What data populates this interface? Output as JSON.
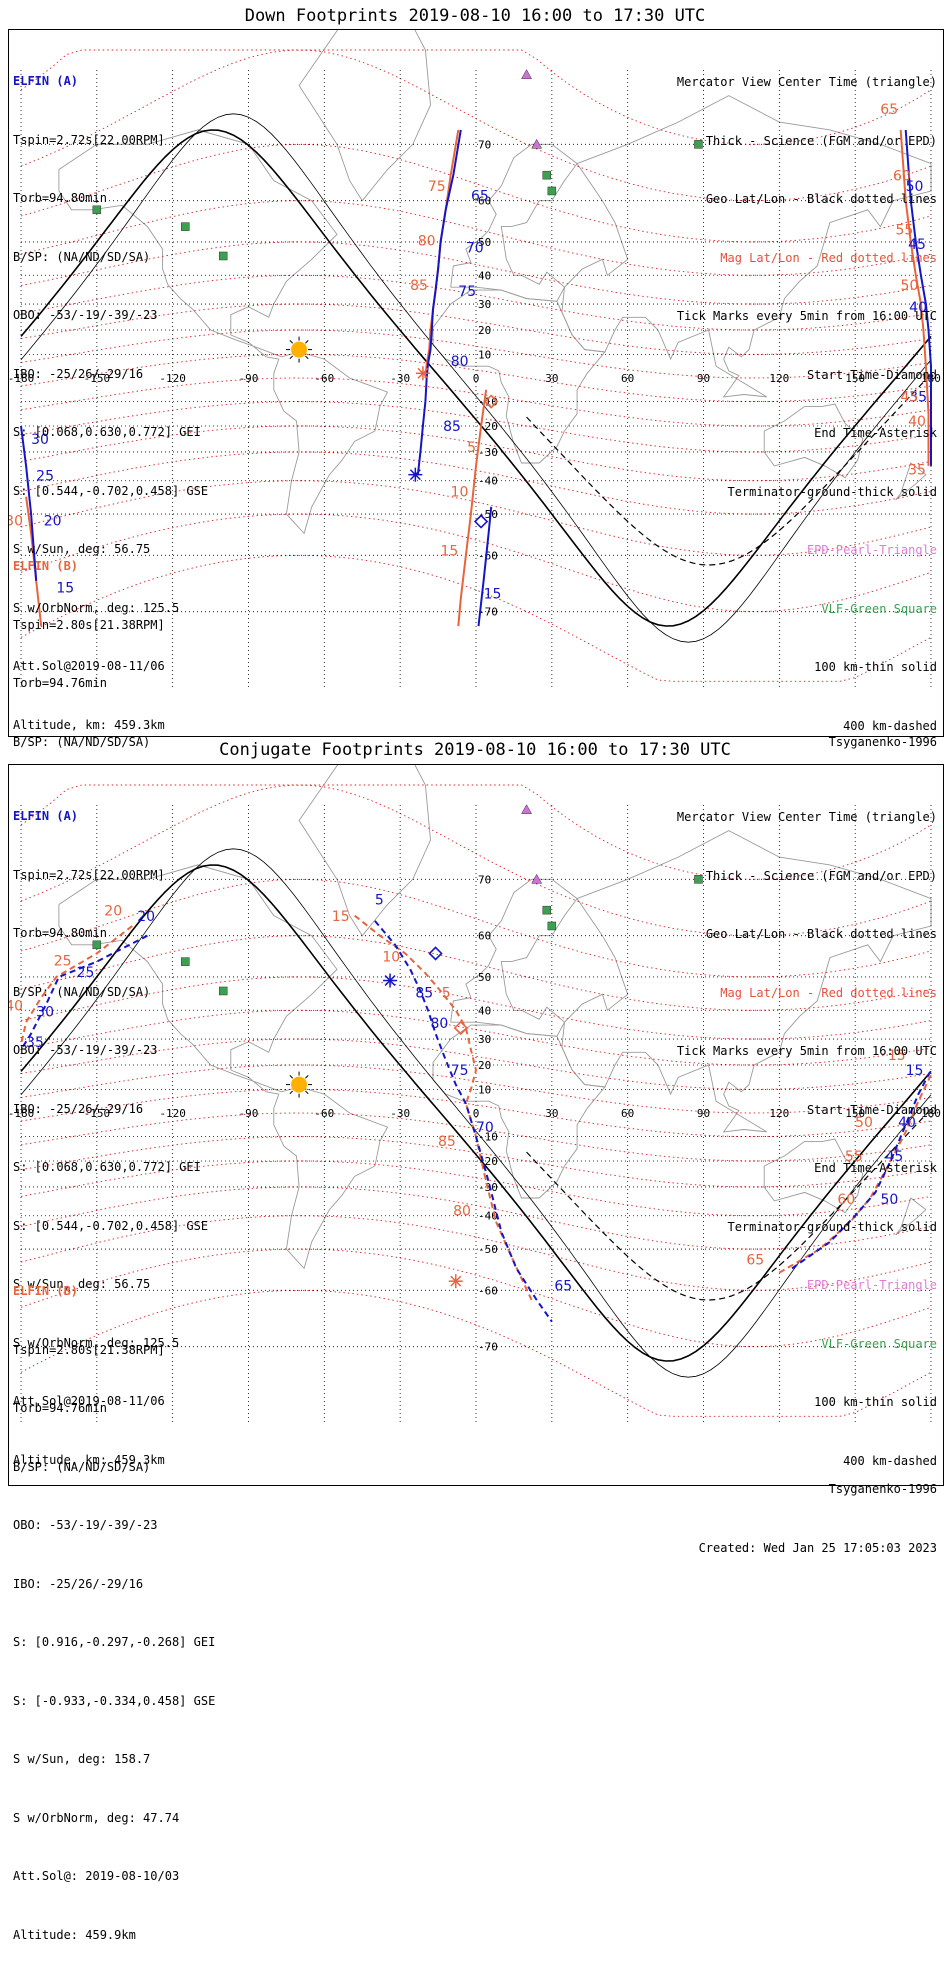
{
  "colors": {
    "elfin_a": "#1414c8",
    "elfin_b": "#e8643c",
    "mag_grid": "#dd2222",
    "geo_grid": "#000000",
    "coast": "#9a9a9a",
    "sun": "#ffb000",
    "epd_triangle": "#d070d8",
    "vlf_square": "#3ca050"
  },
  "legend": {
    "line1": "Mercator View Center Time (triangle)",
    "line2": "Thick - Science (FGM and/or EPD)",
    "line3": "Geo Lat/Lon - Black dotted lines",
    "line4": "Mag Lat/Lon - Red dotted lines",
    "line5": "Tick Marks every 5min from 16:00 UTC",
    "line6": "Start Time-Diamond",
    "line7": "End Time-Asterisk",
    "line8": "Terminator-ground-thick solid",
    "line9": "EPD-Pearl-Triangle",
    "line10": "VLF-Green Square",
    "line11": "100 km-thin solid",
    "line12": "400 km-dashed"
  },
  "elfin_a": {
    "header": "ELFIN (A)",
    "tspin": "Tspin=2.72s[22.00RPM]",
    "torb": "Torb=94.80min",
    "bsp": "B/SP: (NA/ND/SD/SA)",
    "obo": "OBO: -53/-19/-39/-23",
    "ibo": "IBO: -25/26/-29/16",
    "s_gei": "S: [0.068,0.630,0.772] GEI",
    "s_gse": "S: [0.544,-0.702,0.458] GSE",
    "s_sun": "S w/Sun, deg: 56.75",
    "s_orb": "S w/OrbNorm, deg: 125.5",
    "att": "Att.Sol@2019-08-11/06",
    "alt": "Altitude, km: 459.3km"
  },
  "elfin_b": {
    "header": "ELFIN (B)",
    "tspin": "Tspin=2.80s[21.38RPM]",
    "torb": "Torb=94.76min",
    "bsp": "B/SP: (NA/ND/SD/SA)",
    "obo": "OBO: -53/-19/-39/-23",
    "ibo": "IBO: -25/26/-29/16",
    "s_gei": "S: [0.916,-0.297,-0.268] GEI",
    "s_gse": "S: [-0.933,-0.334,0.458] GSE",
    "s_sun": "S w/Sun, deg: 158.7",
    "s_orb": "S w/OrbNorm, deg: 47.74",
    "att": "Att.Sol@: 2019-08-10/03",
    "alt": "Altitude: 459.9km"
  },
  "footer": {
    "model": "Tsyganenko-1996",
    "created": "Created: Wed Jan 25 17:05:03 2023"
  },
  "lon_ticks": [
    -180,
    -150,
    -120,
    -90,
    -60,
    -30,
    0,
    30,
    60,
    90,
    120,
    150,
    180
  ],
  "lat_ticks": [
    70,
    60,
    50,
    40,
    30,
    20,
    10,
    -10,
    -20,
    -30,
    -40,
    -50,
    -60,
    -70
  ],
  "panels": [
    {
      "title": "Down Footprints 2019-08-10 16:00 to 17:30 UTC",
      "a_track": [
        [
          -6,
          72
        ],
        [
          -9,
          65
        ],
        [
          -12,
          58
        ],
        [
          -14,
          50
        ],
        [
          -15,
          42
        ],
        [
          -16,
          35
        ],
        [
          -17,
          28
        ],
        [
          -17.5,
          20
        ],
        [
          -18,
          12
        ],
        [
          -19,
          6
        ],
        [
          -19.5,
          0
        ],
        [
          -20,
          -10
        ],
        [
          -21,
          -20
        ],
        [
          -22,
          -30
        ],
        [
          -23,
          -38
        ]
      ],
      "b_track_main": [
        [
          -7,
          72
        ],
        [
          -10,
          65
        ],
        [
          -12,
          58
        ],
        [
          -14,
          50
        ],
        [
          -15,
          42
        ],
        [
          -16,
          35
        ],
        [
          -17,
          28
        ],
        [
          -18,
          20
        ],
        [
          -18.5,
          12
        ],
        [
          -19.5,
          6
        ],
        [
          -20,
          0
        ]
      ],
      "b_track_south": [
        [
          4,
          -5
        ],
        [
          2,
          -20
        ],
        [
          0,
          -35
        ],
        [
          -2,
          -50
        ],
        [
          -4,
          -60
        ],
        [
          -6,
          -68
        ],
        [
          -7,
          -72
        ]
      ],
      "a_track_south": [
        [
          6,
          -48
        ],
        [
          5,
          -55
        ],
        [
          3,
          -65
        ],
        [
          1,
          -72
        ]
      ],
      "a_track_east": [
        [
          170,
          72
        ],
        [
          172,
          60
        ],
        [
          174,
          50
        ],
        [
          176,
          40
        ],
        [
          178,
          30
        ],
        [
          179,
          20
        ],
        [
          180,
          5
        ],
        [
          180,
          -15
        ],
        [
          180,
          -35
        ]
      ],
      "b_track_east": [
        [
          168,
          72
        ],
        [
          170,
          60
        ],
        [
          172,
          50
        ],
        [
          174,
          40
        ],
        [
          176,
          30
        ],
        [
          177,
          20
        ],
        [
          178,
          5
        ],
        [
          179,
          -15
        ],
        [
          179,
          -35
        ]
      ],
      "a_track_west": [
        [
          -180,
          -20
        ],
        [
          -178,
          -35
        ],
        [
          -176,
          -50
        ],
        [
          -174,
          -65
        ]
      ],
      "b_track_west": [
        [
          -178,
          -45
        ],
        [
          -176,
          -55
        ],
        [
          -174,
          -65
        ],
        [
          -172,
          -72
        ]
      ],
      "a_labels": [
        [
          "65",
          -2,
          60
        ],
        [
          "70",
          -4,
          47
        ],
        [
          "75",
          -7,
          33
        ],
        [
          "80",
          -10,
          5
        ],
        [
          "85",
          -13,
          -22
        ],
        [
          "15",
          3,
          -68
        ],
        [
          "30",
          -176,
          -27
        ],
        [
          "25",
          -174,
          -40
        ],
        [
          "20",
          -171,
          -53
        ],
        [
          "15",
          -166,
          -67
        ],
        [
          "50",
          177,
          62
        ],
        [
          "45",
          178,
          48
        ],
        [
          "40",
          180,
          27
        ],
        [
          "35",
          180,
          -10
        ]
      ],
      "b_labels": [
        [
          "75",
          -12,
          62
        ],
        [
          "80",
          -16,
          49
        ],
        [
          "85",
          -19,
          35
        ],
        [
          "5",
          0,
          -30
        ],
        [
          "10",
          -3,
          -45
        ],
        [
          "15",
          -7,
          -60
        ],
        [
          "65",
          167,
          74
        ],
        [
          "60",
          172,
          64
        ],
        [
          "55",
          173,
          52
        ],
        [
          "50",
          175,
          35
        ],
        [
          "45",
          175,
          -10
        ],
        [
          "40",
          178,
          -20
        ],
        [
          "35",
          178,
          -38
        ],
        [
          "30",
          -180,
          -53
        ]
      ],
      "start_a": [
        2,
        -52
      ],
      "start_b": [
        6,
        -10
      ],
      "end_a": [
        -24,
        -38
      ],
      "end_b": [
        -21,
        2
      ]
    },
    {
      "title": "Conjugate Footprints 2019-08-10 16:00 to 17:30 UTC",
      "a_track": [
        [
          -40,
          63
        ],
        [
          -32,
          58
        ],
        [
          -26,
          52
        ],
        [
          -22,
          46
        ],
        [
          -19,
          40
        ],
        [
          -16,
          32
        ],
        [
          -12,
          22
        ],
        [
          -8,
          12
        ],
        [
          -4,
          4
        ],
        [
          0,
          -10
        ],
        [
          5,
          -28
        ],
        [
          10,
          -45
        ],
        [
          16,
          -55
        ],
        [
          24,
          -62
        ],
        [
          30,
          -66
        ]
      ],
      "b_track": [
        [
          -48,
          64
        ],
        [
          -38,
          60
        ],
        [
          -28,
          56
        ],
        [
          -20,
          51
        ],
        [
          -14,
          46
        ],
        [
          -8,
          40
        ],
        [
          -4,
          34
        ],
        [
          -2,
          26
        ],
        [
          0,
          18
        ],
        [
          -2,
          10
        ],
        [
          -4,
          4
        ],
        [
          0,
          -10
        ],
        [
          4,
          -28
        ],
        [
          8,
          -42
        ],
        [
          14,
          -52
        ],
        [
          22,
          -62
        ]
      ],
      "a_track_west": [
        [
          -130,
          60
        ],
        [
          -150,
          54
        ],
        [
          -165,
          50
        ],
        [
          -170,
          42
        ],
        [
          -176,
          32
        ],
        [
          -180,
          26
        ]
      ],
      "b_track_west": [
        [
          -136,
          62
        ],
        [
          -150,
          56
        ],
        [
          -166,
          50
        ],
        [
          -172,
          44
        ],
        [
          -178,
          36
        ],
        [
          -180,
          28
        ]
      ],
      "a_track_east": [
        [
          125,
          -55
        ],
        [
          140,
          -48
        ],
        [
          150,
          -40
        ],
        [
          158,
          -32
        ],
        [
          164,
          -20
        ],
        [
          170,
          -5
        ],
        [
          175,
          8
        ],
        [
          180,
          18
        ]
      ],
      "b_track_east": [
        [
          120,
          -56
        ],
        [
          136,
          -50
        ],
        [
          148,
          -42
        ],
        [
          156,
          -34
        ],
        [
          163,
          -22
        ],
        [
          170,
          -8
        ],
        [
          175,
          5
        ],
        [
          180,
          16
        ]
      ],
      "a_labels": [
        [
          "5",
          -40,
          66
        ],
        [
          "85",
          -24,
          44
        ],
        [
          "80",
          -18,
          34
        ],
        [
          "75",
          -10,
          16
        ],
        [
          "70",
          0,
          -8
        ],
        [
          "65",
          31,
          -60
        ],
        [
          "20",
          -134,
          63
        ],
        [
          "25",
          -158,
          50
        ],
        [
          "30",
          -174,
          38
        ],
        [
          "35",
          -178,
          27
        ],
        [
          "50",
          160,
          -36
        ],
        [
          "45",
          162,
          -20
        ],
        [
          "40",
          167,
          -6
        ],
        [
          "15",
          177,
          16
        ]
      ],
      "b_labels": [
        [
          "15",
          -50,
          63
        ],
        [
          "10",
          -30,
          54
        ],
        [
          "5",
          -10,
          44
        ],
        [
          "85",
          -8,
          -14
        ],
        [
          "80",
          -2,
          -40
        ],
        [
          "20",
          -140,
          64
        ],
        [
          "25",
          -160,
          53
        ],
        [
          "40",
          -180,
          40
        ],
        [
          "65",
          114,
          -54
        ],
        [
          "60",
          150,
          -36
        ],
        [
          "55",
          153,
          -20
        ],
        [
          "50",
          157,
          -6
        ],
        [
          "15",
          170,
          22
        ]
      ],
      "start_a": [
        -16,
        56
      ],
      "start_b": [
        -6,
        34
      ],
      "end_a": [
        -34,
        49
      ],
      "end_b": [
        -8,
        -58
      ]
    }
  ]
}
